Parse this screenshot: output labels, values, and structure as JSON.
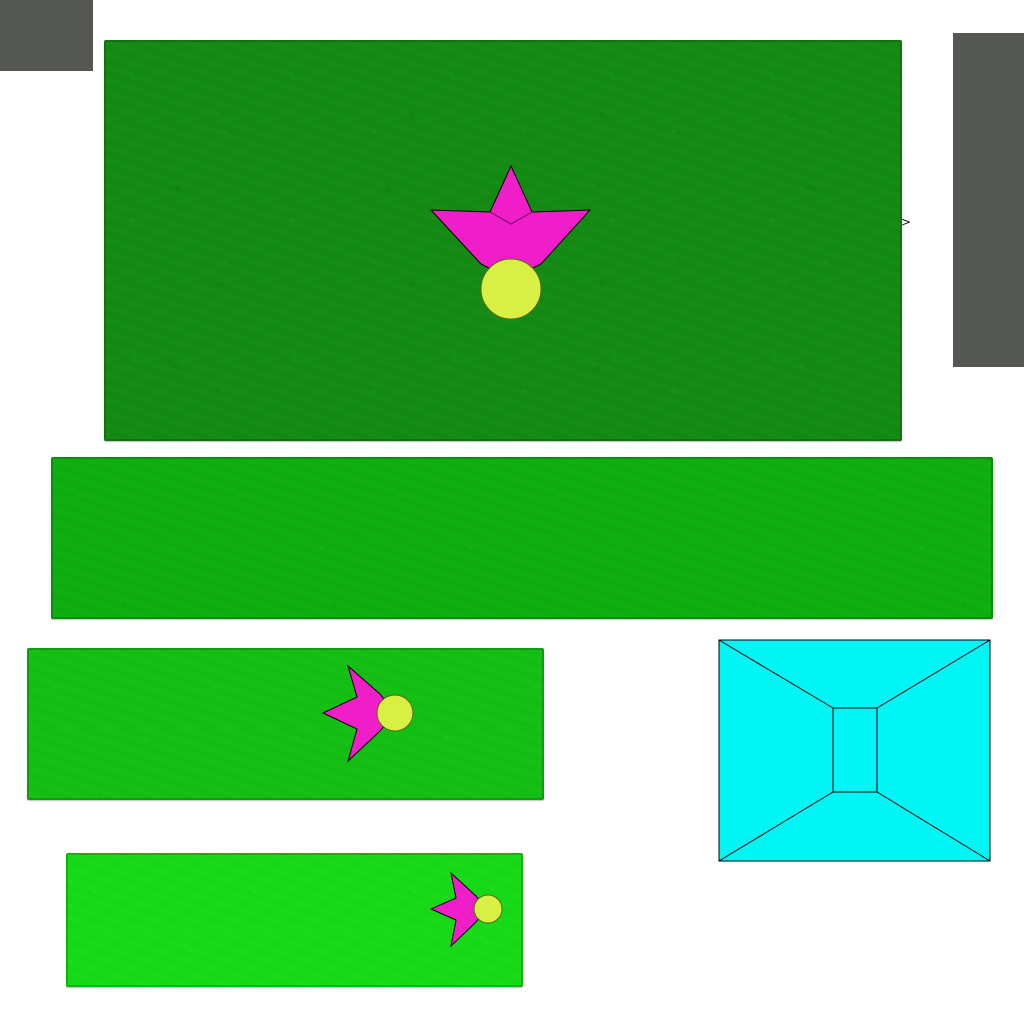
{
  "colors": {
    "background": "#ffffff",
    "tab_gray": "#555752",
    "panel_1": "#148a14",
    "panel_2": "#0fae10",
    "panel_3": "#14bf14",
    "panel_4": "#17d917",
    "star": "#f01ec8",
    "orb": "#d8f044",
    "portal": "#00f5f5",
    "outline": "#000000"
  },
  "icons": {
    "star": "star-icon",
    "orb": "orb-icon",
    "portal": "portal-icon",
    "pointer": "caret-right-icon"
  },
  "ui": {
    "pointer_glyph": ">"
  }
}
